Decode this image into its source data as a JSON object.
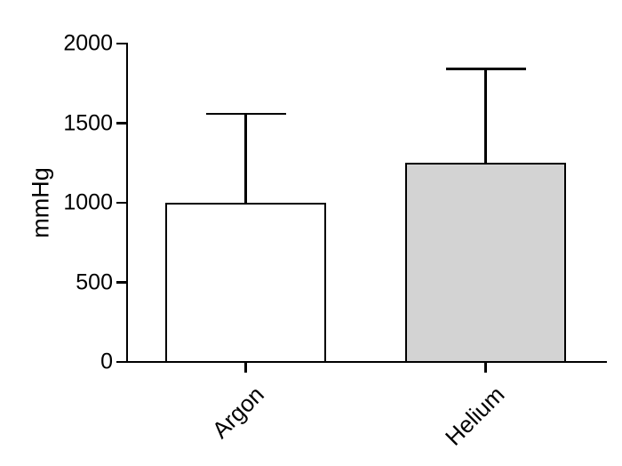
{
  "chart_data": {
    "type": "bar",
    "title": "",
    "xlabel": "",
    "ylabel": "mmHg",
    "categories": [
      "Argon",
      "Helium"
    ],
    "values": [
      1000,
      1250
    ],
    "error_top": [
      1560,
      1840
    ],
    "error_type": "upper whisker with cap",
    "bar_fills": [
      "#ffffff",
      "#d3d3d3"
    ],
    "bar_edge_color": "#000000",
    "yticks": [
      0,
      500,
      1000,
      1500,
      2000
    ],
    "ylim": [
      0,
      2000
    ],
    "grid": false,
    "legend": "none",
    "tick_label_rotation_deg": -45
  },
  "colors": {
    "background": "#ffffff",
    "line": "#000000",
    "helium_fill": "#d3d3d3",
    "argon_fill": "#ffffff"
  }
}
